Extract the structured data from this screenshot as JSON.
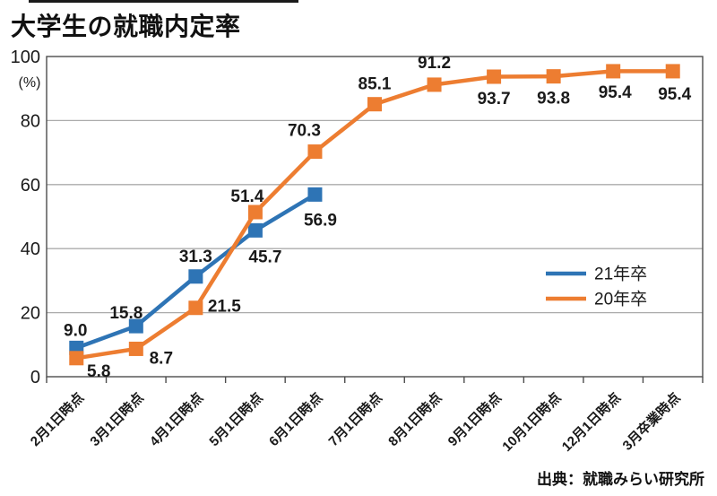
{
  "page": {
    "title": "大学生の就職内定率",
    "source": "出典：就職みらい研究所"
  },
  "colors": {
    "series_21": "#2E74B5",
    "series_20": "#ED7D31",
    "grid": "#ABABAB",
    "axis": "#4D4D4D",
    "text": "#1A1A1A"
  },
  "chart_data": {
    "type": "line",
    "title": "大学生の就職内定率",
    "xlabel": "",
    "ylabel": "(%)",
    "ylim": [
      0,
      100
    ],
    "yticks": [
      0,
      20,
      40,
      60,
      80,
      100
    ],
    "grid": "horizontal",
    "legend_position": "right-middle",
    "marker": "square",
    "categories": [
      "2月1日時点",
      "3月1日時点",
      "4月1日時点",
      "5月1日時点",
      "6月1日時点",
      "7月1日時点",
      "8月1日時点",
      "9月1日時点",
      "10月1日時点",
      "12月1日時点",
      "3月卒業時点"
    ],
    "series": [
      {
        "name": "21年卒",
        "color": "#2E74B5",
        "values": [
          9.0,
          15.8,
          31.3,
          45.7,
          56.9
        ]
      },
      {
        "name": "20年卒",
        "color": "#ED7D31",
        "values": [
          5.8,
          8.7,
          21.5,
          51.4,
          70.3,
          85.1,
          91.2,
          93.7,
          93.8,
          95.4,
          95.4
        ]
      }
    ]
  }
}
